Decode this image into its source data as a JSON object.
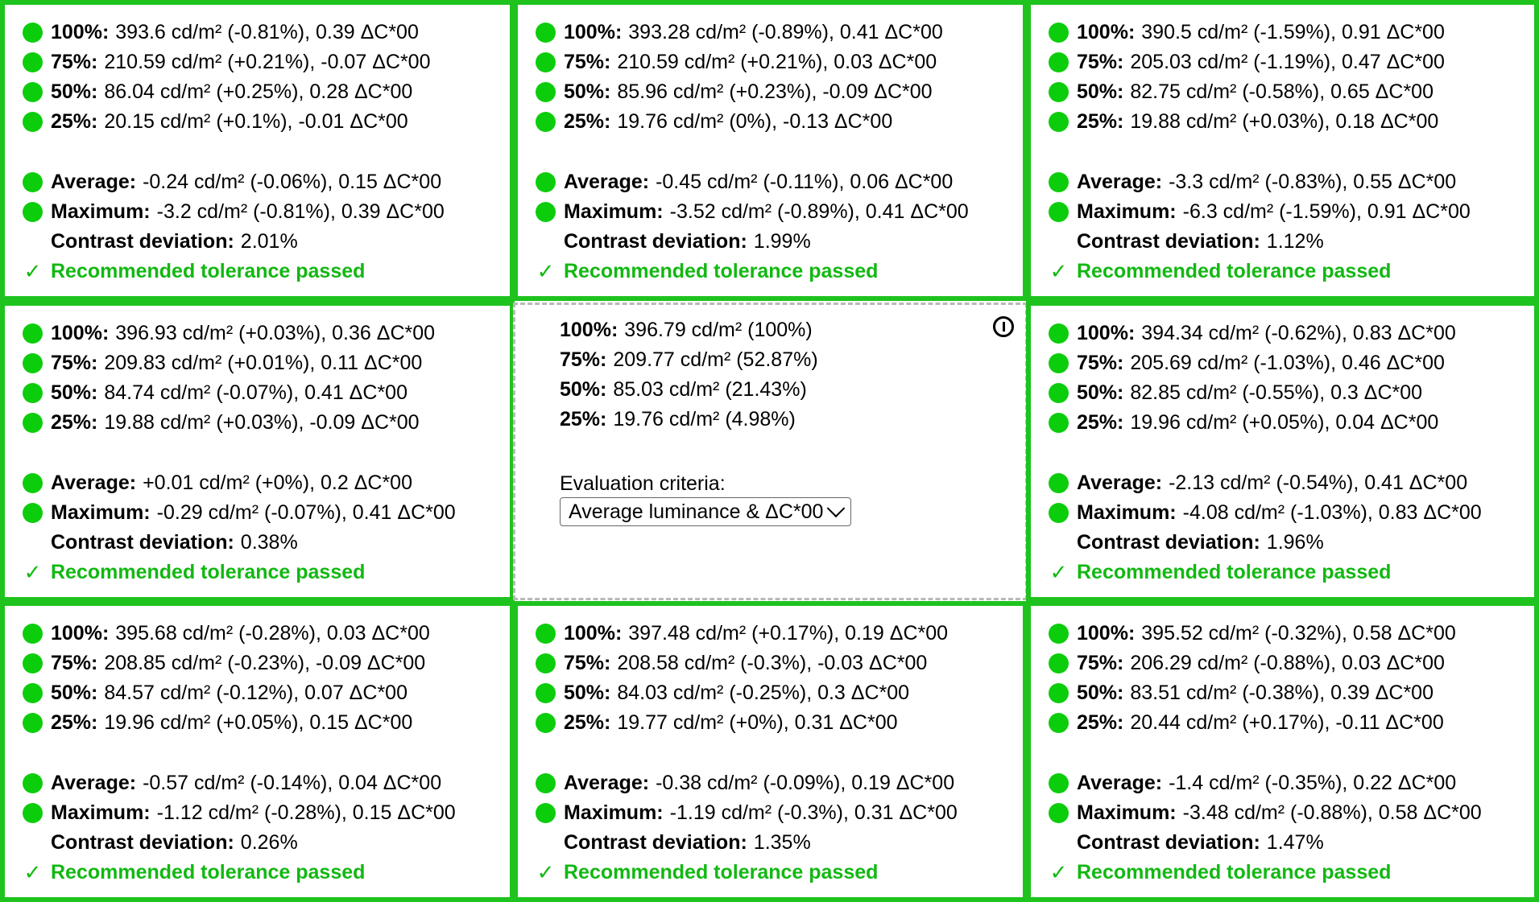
{
  "cells": [
    {
      "rows": [
        {
          "label": "100%:",
          "value": "393.6 cd/m² (-0.81%), 0.39 ΔC*00"
        },
        {
          "label": "75%:",
          "value": "210.59 cd/m² (+0.21%), -0.07 ΔC*00"
        },
        {
          "label": "50%:",
          "value": "86.04 cd/m² (+0.25%), 0.28 ΔC*00"
        },
        {
          "label": "25%:",
          "value": "20.15 cd/m² (+0.1%), -0.01 ΔC*00"
        }
      ],
      "average": {
        "label": "Average:",
        "value": "-0.24 cd/m² (-0.06%), 0.15 ΔC*00"
      },
      "maximum": {
        "label": "Maximum:",
        "value": "-3.2 cd/m² (-0.81%), 0.39 ΔC*00"
      },
      "contrast": {
        "label": "Contrast deviation:",
        "value": "2.01%"
      },
      "status": {
        "icon": "✓",
        "text": "Recommended tolerance passed"
      }
    },
    {
      "rows": [
        {
          "label": "100%:",
          "value": "393.28 cd/m² (-0.89%), 0.41 ΔC*00"
        },
        {
          "label": "75%:",
          "value": "210.59 cd/m² (+0.21%), 0.03 ΔC*00"
        },
        {
          "label": "50%:",
          "value": "85.96 cd/m² (+0.23%), -0.09 ΔC*00"
        },
        {
          "label": "25%:",
          "value": "19.76 cd/m² (0%), -0.13 ΔC*00"
        }
      ],
      "average": {
        "label": "Average:",
        "value": "-0.45 cd/m² (-0.11%), 0.06 ΔC*00"
      },
      "maximum": {
        "label": "Maximum:",
        "value": "-3.52 cd/m² (-0.89%), 0.41 ΔC*00"
      },
      "contrast": {
        "label": "Contrast deviation:",
        "value": "1.99%"
      },
      "status": {
        "icon": "✓",
        "text": "Recommended tolerance passed"
      }
    },
    {
      "rows": [
        {
          "label": "100%:",
          "value": "390.5 cd/m² (-1.59%), 0.91 ΔC*00"
        },
        {
          "label": "75%:",
          "value": "205.03 cd/m² (-1.19%), 0.47 ΔC*00"
        },
        {
          "label": "50%:",
          "value": "82.75 cd/m² (-0.58%), 0.65 ΔC*00"
        },
        {
          "label": "25%:",
          "value": "19.88 cd/m² (+0.03%), 0.18 ΔC*00"
        }
      ],
      "average": {
        "label": "Average:",
        "value": "-3.3 cd/m² (-0.83%), 0.55 ΔC*00"
      },
      "maximum": {
        "label": "Maximum:",
        "value": "-6.3 cd/m² (-1.59%), 0.91 ΔC*00"
      },
      "contrast": {
        "label": "Contrast deviation:",
        "value": "1.12%"
      },
      "status": {
        "icon": "✓",
        "text": "Recommended tolerance passed"
      }
    },
    {
      "rows": [
        {
          "label": "100%:",
          "value": "396.93 cd/m² (+0.03%), 0.36 ΔC*00"
        },
        {
          "label": "75%:",
          "value": "209.83 cd/m² (+0.01%), 0.11 ΔC*00"
        },
        {
          "label": "50%:",
          "value": "84.74 cd/m² (-0.07%), 0.41 ΔC*00"
        },
        {
          "label": "25%:",
          "value": "19.88 cd/m² (+0.03%), -0.09 ΔC*00"
        }
      ],
      "average": {
        "label": "Average:",
        "value": "+0.01 cd/m² (+0%), 0.2 ΔC*00"
      },
      "maximum": {
        "label": "Maximum:",
        "value": "-0.29 cd/m² (-0.07%), 0.41 ΔC*00"
      },
      "contrast": {
        "label": "Contrast deviation:",
        "value": "0.38%"
      },
      "status": {
        "icon": "✓",
        "text": "Recommended tolerance passed"
      }
    },
    {
      "reference": true,
      "rows": [
        {
          "label": "100%:",
          "value": "396.79 cd/m² (100%)"
        },
        {
          "label": "75%:",
          "value": "209.77 cd/m² (52.87%)"
        },
        {
          "label": "50%:",
          "value": "85.03 cd/m² (21.43%)"
        },
        {
          "label": "25%:",
          "value": "19.76 cd/m² (4.98%)"
        }
      ],
      "criteria_label": "Evaluation criteria:",
      "criteria_value": "Average luminance & ΔC*00",
      "info_icon": "info-icon"
    },
    {
      "rows": [
        {
          "label": "100%:",
          "value": "394.34 cd/m² (-0.62%), 0.83 ΔC*00"
        },
        {
          "label": "75%:",
          "value": "205.69 cd/m² (-1.03%), 0.46 ΔC*00"
        },
        {
          "label": "50%:",
          "value": "82.85 cd/m² (-0.55%), 0.3 ΔC*00"
        },
        {
          "label": "25%:",
          "value": "19.96 cd/m² (+0.05%), 0.04 ΔC*00"
        }
      ],
      "average": {
        "label": "Average:",
        "value": "-2.13 cd/m² (-0.54%), 0.41 ΔC*00"
      },
      "maximum": {
        "label": "Maximum:",
        "value": "-4.08 cd/m² (-1.03%), 0.83 ΔC*00"
      },
      "contrast": {
        "label": "Contrast deviation:",
        "value": "1.96%"
      },
      "status": {
        "icon": "✓",
        "text": "Recommended tolerance passed"
      }
    },
    {
      "rows": [
        {
          "label": "100%:",
          "value": "395.68 cd/m² (-0.28%), 0.03 ΔC*00"
        },
        {
          "label": "75%:",
          "value": "208.85 cd/m² (-0.23%), -0.09 ΔC*00"
        },
        {
          "label": "50%:",
          "value": "84.57 cd/m² (-0.12%), 0.07 ΔC*00"
        },
        {
          "label": "25%:",
          "value": "19.96 cd/m² (+0.05%), 0.15 ΔC*00"
        }
      ],
      "average": {
        "label": "Average:",
        "value": "-0.57 cd/m² (-0.14%), 0.04 ΔC*00"
      },
      "maximum": {
        "label": "Maximum:",
        "value": "-1.12 cd/m² (-0.28%), 0.15 ΔC*00"
      },
      "contrast": {
        "label": "Contrast deviation:",
        "value": "0.26%"
      },
      "status": {
        "icon": "✓",
        "text": "Recommended tolerance passed"
      }
    },
    {
      "rows": [
        {
          "label": "100%:",
          "value": "397.48 cd/m² (+0.17%), 0.19 ΔC*00"
        },
        {
          "label": "75%:",
          "value": "208.58 cd/m² (-0.3%), -0.03 ΔC*00"
        },
        {
          "label": "50%:",
          "value": "84.03 cd/m² (-0.25%), 0.3 ΔC*00"
        },
        {
          "label": "25%:",
          "value": "19.77 cd/m² (+0%), 0.31 ΔC*00"
        }
      ],
      "average": {
        "label": "Average:",
        "value": "-0.38 cd/m² (-0.09%), 0.19 ΔC*00"
      },
      "maximum": {
        "label": "Maximum:",
        "value": "-1.19 cd/m² (-0.3%), 0.31 ΔC*00"
      },
      "contrast": {
        "label": "Contrast deviation:",
        "value": "1.35%"
      },
      "status": {
        "icon": "✓",
        "text": "Recommended tolerance passed"
      }
    },
    {
      "rows": [
        {
          "label": "100%:",
          "value": "395.52 cd/m² (-0.32%), 0.58 ΔC*00"
        },
        {
          "label": "75%:",
          "value": "206.29 cd/m² (-0.88%), 0.03 ΔC*00"
        },
        {
          "label": "50%:",
          "value": "83.51 cd/m² (-0.38%), 0.39 ΔC*00"
        },
        {
          "label": "25%:",
          "value": "20.44 cd/m² (+0.17%), -0.11 ΔC*00"
        }
      ],
      "average": {
        "label": "Average:",
        "value": "-1.4 cd/m² (-0.35%), 0.22 ΔC*00"
      },
      "maximum": {
        "label": "Maximum:",
        "value": "-3.48 cd/m² (-0.88%), 0.58 ΔC*00"
      },
      "contrast": {
        "label": "Contrast deviation:",
        "value": "1.47%"
      },
      "status": {
        "icon": "✓",
        "text": "Recommended tolerance passed"
      }
    }
  ],
  "colors": {
    "border": "#1ec31e",
    "indicator": "#0ccd0c",
    "pass_text": "#12b812",
    "reference_border": "#b9b9b9"
  }
}
